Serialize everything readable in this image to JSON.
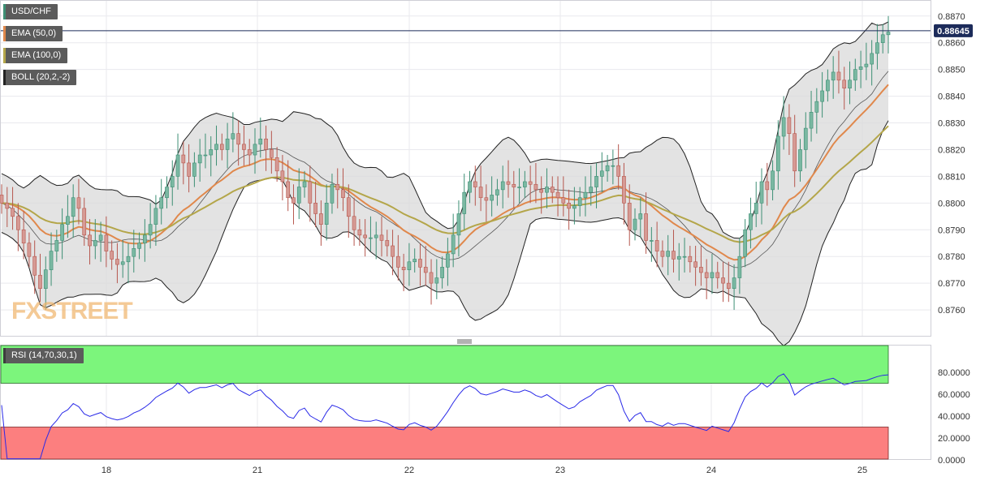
{
  "window": {
    "title": "USD/CHF"
  },
  "legend": {
    "symbol": "USD/CHF",
    "ema50": "EMA (50,0)",
    "ema100": "EMA (100,0)",
    "boll": "BOLL (20,2,-2)",
    "rsi": "RSI (14,70,30,1)"
  },
  "watermark": "FXSTREET",
  "price_badge": "0.88645",
  "colors": {
    "up": "#3d8f74",
    "down": "#b6574e",
    "up_fill": "#7ab8a2",
    "down_fill": "#d69a94",
    "ema50": "#e0884c",
    "ema100": "#b4a64a",
    "boll_band": "#d9d9d9",
    "boll_line": "#222222",
    "rsi_line": "#2a2ae8",
    "rsi_over": "#7cf57c",
    "rsi_under": "#fc7f7f",
    "grid": "#e9e9ee",
    "price_line": "#1c2b5a"
  },
  "chart_data": [
    {
      "type": "candlestick",
      "title": "USD/CHF",
      "x_tick_labels": [
        "18",
        "21",
        "22",
        "23",
        "24",
        "25"
      ],
      "y_tick_labels": [
        "0.8760",
        "0.8770",
        "0.8780",
        "0.8790",
        "0.8800",
        "0.8810",
        "0.8820",
        "0.8830",
        "0.8840",
        "0.8850",
        "0.8860",
        "0.8870"
      ],
      "ylim": [
        0.875,
        0.8876
      ],
      "last_price": 0.88645,
      "grid": true,
      "legend_position": "top-left",
      "ohlc_close": [
        0.88,
        0.8798,
        0.8795,
        0.879,
        0.8785,
        0.878,
        0.8773,
        0.8768,
        0.8775,
        0.8782,
        0.8786,
        0.8792,
        0.8795,
        0.8802,
        0.8798,
        0.8788,
        0.8784,
        0.8786,
        0.8788,
        0.8782,
        0.8779,
        0.8777,
        0.8778,
        0.878,
        0.8783,
        0.8785,
        0.8788,
        0.8792,
        0.8798,
        0.8802,
        0.8806,
        0.881,
        0.8818,
        0.8815,
        0.881,
        0.8815,
        0.8818,
        0.8818,
        0.882,
        0.8822,
        0.882,
        0.8824,
        0.8826,
        0.8822,
        0.882,
        0.8818,
        0.8822,
        0.8824,
        0.882,
        0.8817,
        0.8812,
        0.8808,
        0.8802,
        0.88,
        0.8806,
        0.8808,
        0.88,
        0.8796,
        0.8792,
        0.88,
        0.8807,
        0.8805,
        0.8802,
        0.8795,
        0.879,
        0.8788,
        0.8787,
        0.8787,
        0.8788,
        0.8786,
        0.8784,
        0.878,
        0.8776,
        0.8775,
        0.8778,
        0.8779,
        0.8776,
        0.8774,
        0.877,
        0.8772,
        0.8776,
        0.8781,
        0.8788,
        0.8796,
        0.8804,
        0.8808,
        0.8806,
        0.8802,
        0.8801,
        0.8803,
        0.8805,
        0.8808,
        0.8807,
        0.8806,
        0.8806,
        0.8808,
        0.8807,
        0.8805,
        0.8804,
        0.8806,
        0.8804,
        0.8802,
        0.88,
        0.8798,
        0.8799,
        0.8802,
        0.8804,
        0.8806,
        0.881,
        0.8812,
        0.8814,
        0.8814,
        0.881,
        0.88,
        0.879,
        0.8794,
        0.8796,
        0.8786,
        0.8786,
        0.8782,
        0.878,
        0.8782,
        0.8779,
        0.878,
        0.878,
        0.8778,
        0.8776,
        0.8774,
        0.8772,
        0.8774,
        0.8772,
        0.877,
        0.8768,
        0.8772,
        0.878,
        0.879,
        0.8796,
        0.88,
        0.8808,
        0.8805,
        0.8812,
        0.8825,
        0.8832,
        0.8826,
        0.8812,
        0.882,
        0.8828,
        0.8834,
        0.8838,
        0.8842,
        0.8846,
        0.8849,
        0.8846,
        0.8843,
        0.8846,
        0.885,
        0.8851,
        0.8852,
        0.8856,
        0.886,
        0.8863,
        0.8864
      ]
    },
    {
      "type": "line",
      "title": "RSI (14,70,30,1)",
      "y_tick_labels": [
        "0.0000",
        "20.0000",
        "40.0000",
        "60.0000",
        "80.0000"
      ],
      "ylim": [
        0,
        100
      ],
      "overbought": 70,
      "oversold": 30,
      "grid": true
    }
  ]
}
